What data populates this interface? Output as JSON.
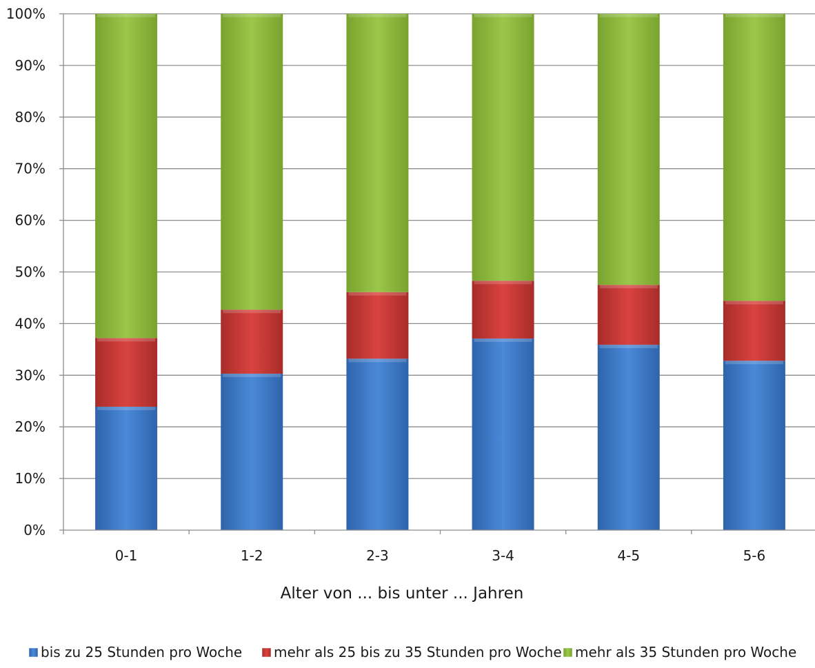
{
  "chart_data": {
    "type": "bar",
    "stacked": true,
    "percent_stacked": true,
    "categories": [
      "0-1",
      "1-2",
      "2-3",
      "3-4",
      "4-5",
      "5-6"
    ],
    "series": [
      {
        "name": "bis zu 25 Stunden pro Woche",
        "values": [
          23.9,
          30.3,
          33.2,
          37.1,
          35.9,
          32.8
        ],
        "color": "#3f7fcf"
      },
      {
        "name": "mehr als 25 bis zu 35 Stunden pro Woche",
        "values": [
          13.3,
          12.4,
          12.9,
          11.2,
          11.6,
          11.6
        ],
        "color": "#cf3a38"
      },
      {
        "name": "mehr als 35 Stunden pro Woche",
        "values": [
          62.8,
          57.3,
          53.9,
          51.7,
          52.5,
          55.6
        ],
        "color": "#8fba3e"
      }
    ],
    "y_ticks": [
      "0%",
      "10%",
      "20%",
      "30%",
      "40%",
      "50%",
      "60%",
      "70%",
      "80%",
      "90%",
      "100%"
    ],
    "ylim": [
      0,
      100
    ],
    "xlabel": "Alter von ... bis unter ... Jahren",
    "ylabel": "",
    "title": "",
    "grid": true,
    "legend_position": "bottom"
  }
}
